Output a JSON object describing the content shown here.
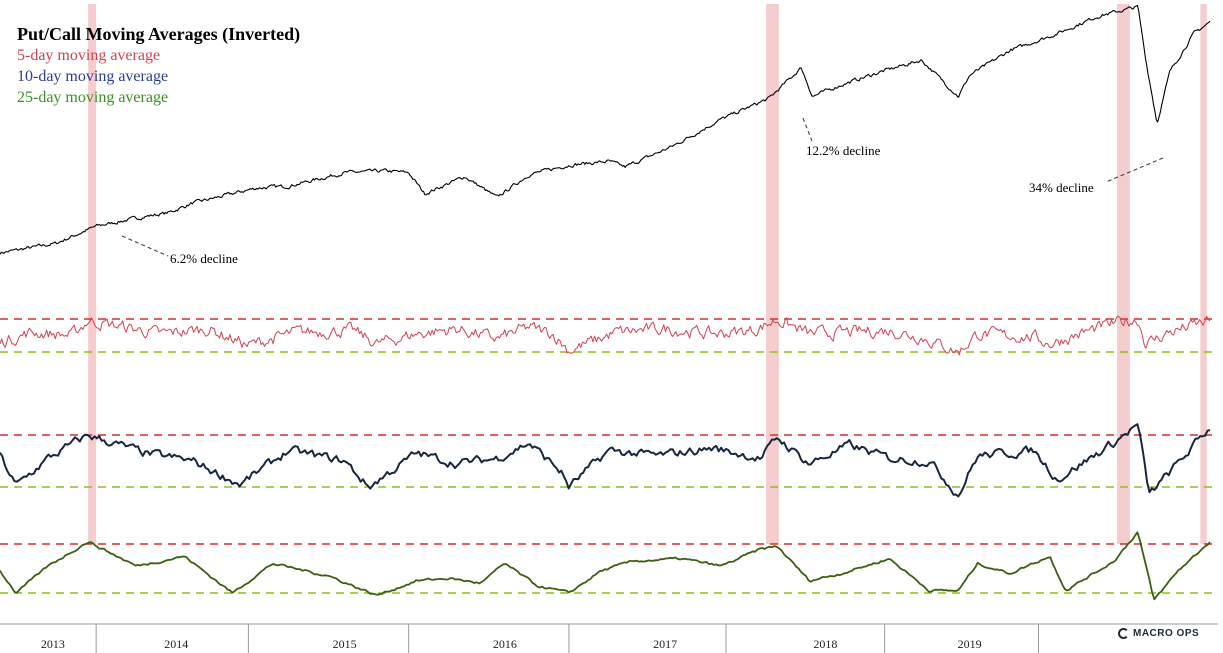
{
  "chart_data": {
    "type": "line",
    "title": "Put/Call Moving Averages (Inverted)",
    "legend": [
      {
        "label": "5-day moving average",
        "color": "#d1424f"
      },
      {
        "label": "10-day moving average",
        "color": "#2a3f8f"
      },
      {
        "label": "25-day moving average",
        "color": "#3d8f2a"
      }
    ],
    "x_ticks": [
      "2013",
      "2014",
      "2015",
      "2016",
      "2017",
      "2018",
      "2019"
    ],
    "highlight_color": "#f3c4c6",
    "upper_threshold_color": "#d62f2f",
    "lower_threshold_color": "#8cbf1f",
    "annotations": [
      {
        "label": "6.2% decline"
      },
      {
        "label": "12.2% decline"
      },
      {
        "label": "34% decline"
      }
    ],
    "series": [
      {
        "key": "price",
        "color": "#000000",
        "x": [
          2013.0,
          2013.35,
          2013.6,
          2013.9,
          2014.05,
          2014.2,
          2014.45,
          2014.6,
          2014.8,
          2015.15,
          2015.4,
          2015.55,
          2015.65,
          2015.9,
          2016.1,
          2016.3,
          2016.55,
          2016.8,
          2016.9,
          2017.2,
          2017.5,
          2017.8,
          2018.0,
          2018.07,
          2018.25,
          2018.5,
          2018.75,
          2018.98,
          2019.05,
          2019.3,
          2019.6,
          2019.85,
          2020.1,
          2020.15,
          2020.22,
          2020.3,
          2020.45,
          2020.55
        ],
        "y": [
          20,
          30,
          48,
          58,
          62,
          72,
          82,
          88,
          90,
          104,
          106,
          104,
          82,
          100,
          78,
          102,
          112,
          116,
          110,
          132,
          160,
          182,
          214,
          184,
          196,
          210,
          222,
          184,
          206,
          232,
          250,
          268,
          278,
          222,
          156,
          210,
          250,
          262
        ]
      },
      {
        "key": "ma5",
        "color": "#d1424f",
        "x": [
          2013.0,
          2013.2,
          2013.45,
          2013.55,
          2014.0,
          2014.3,
          2014.55,
          2014.85,
          2015.2,
          2015.35,
          2015.6,
          2015.85,
          2016.1,
          2016.3,
          2016.45,
          2016.55,
          2016.85,
          2017.15,
          2017.45,
          2017.7,
          2017.85,
          2018.05,
          2018.3,
          2018.55,
          2018.75,
          2018.98,
          2019.1,
          2019.45,
          2019.55,
          2019.9,
          2020.1,
          2020.15,
          2020.3,
          2020.55
        ],
        "y": [
          0.3,
          0.6,
          0.5,
          0.95,
          0.55,
          0.7,
          0.2,
          0.6,
          0.65,
          0.25,
          0.55,
          0.7,
          0.4,
          0.75,
          0.55,
          0.05,
          0.6,
          0.7,
          0.55,
          0.65,
          0.98,
          0.55,
          0.6,
          0.65,
          0.45,
          0.0,
          0.55,
          0.45,
          0.25,
          0.8,
          1.0,
          0.25,
          0.6,
          0.95
        ]
      },
      {
        "key": "ma10",
        "color": "#17283e",
        "x": [
          2013.0,
          2013.1,
          2013.3,
          2013.55,
          2013.9,
          2014.2,
          2014.5,
          2014.8,
          2015.15,
          2015.3,
          2015.6,
          2015.85,
          2016.1,
          2016.3,
          2016.5,
          2016.55,
          2016.8,
          2017.1,
          2017.45,
          2017.75,
          2017.85,
          2018.05,
          2018.3,
          2018.55,
          2018.8,
          2018.98,
          2019.1,
          2019.45,
          2019.6,
          2019.95,
          2020.1,
          2020.17,
          2020.35,
          2020.55
        ],
        "y": [
          0.6,
          0.02,
          0.55,
          1.0,
          0.65,
          0.5,
          0.05,
          0.7,
          0.5,
          0.0,
          0.65,
          0.45,
          0.55,
          0.85,
          0.3,
          0.0,
          0.7,
          0.6,
          0.75,
          0.55,
          0.95,
          0.45,
          0.8,
          0.55,
          0.5,
          -0.15,
          0.6,
          0.7,
          0.15,
          0.85,
          1.2,
          -0.15,
          0.45,
          1.15
        ]
      },
      {
        "key": "ma25",
        "color": "#3c5f12",
        "x": [
          2013.0,
          2013.1,
          2013.3,
          2013.55,
          2013.85,
          2014.15,
          2014.45,
          2014.7,
          2015.05,
          2015.35,
          2015.6,
          2015.8,
          2016.0,
          2016.15,
          2016.35,
          2016.55,
          2016.75,
          2016.95,
          2017.25,
          2017.5,
          2017.75,
          2017.85,
          2018.05,
          2018.25,
          2018.55,
          2018.8,
          2018.98,
          2019.1,
          2019.3,
          2019.55,
          2019.65,
          2019.95,
          2020.1,
          2020.2,
          2020.35,
          2020.55
        ],
        "y": [
          0.45,
          0.0,
          0.55,
          1.05,
          0.55,
          0.75,
          0.0,
          0.6,
          0.35,
          -0.05,
          0.25,
          0.3,
          0.2,
          0.6,
          0.15,
          0.0,
          0.45,
          0.65,
          0.7,
          0.55,
          0.9,
          0.95,
          0.25,
          0.4,
          0.7,
          0.05,
          0.05,
          0.6,
          0.4,
          0.75,
          0.05,
          0.65,
          1.25,
          -0.15,
          0.45,
          1.05
        ]
      }
    ]
  }
}
